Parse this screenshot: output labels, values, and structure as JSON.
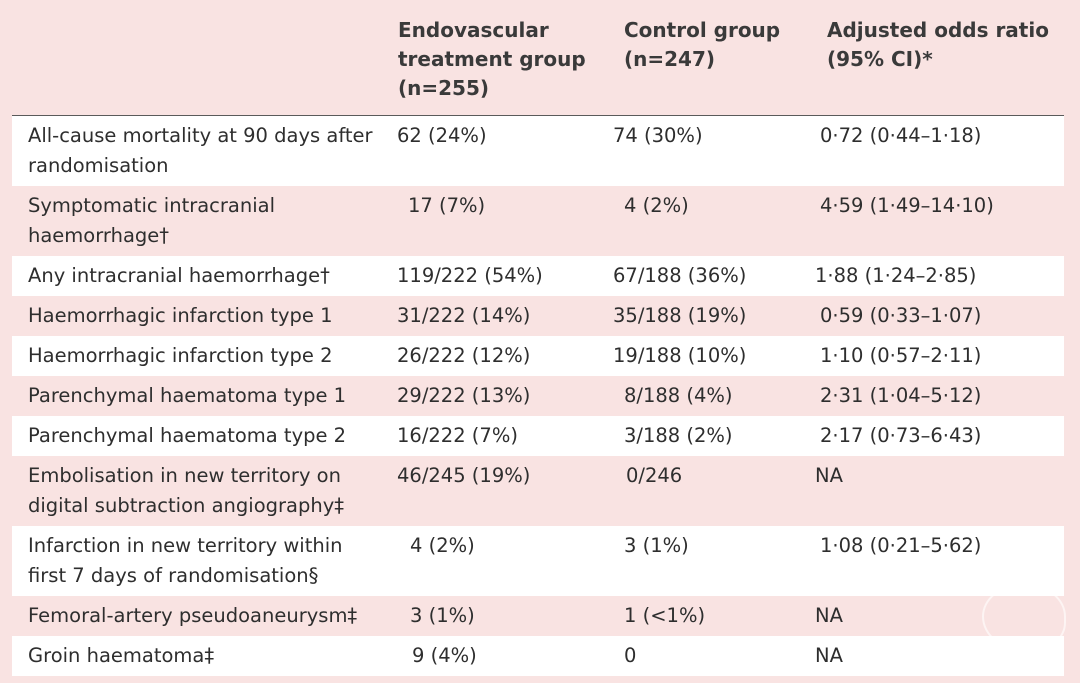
{
  "header": {
    "col1": [
      "Endovascular",
      "treatment group",
      "(n=255)"
    ],
    "col2": [
      "Control group",
      "(n=247)"
    ],
    "col3": [
      "Adjusted odds ratio",
      "(95% CI)*"
    ]
  },
  "rows": [
    {
      "label": [
        "All-cause mortality at 90 days after",
        "randomisation"
      ],
      "ev": "62 (24%)",
      "ctrl": "74 (30%)",
      "or": "0·72 (0·44–1·18)"
    },
    {
      "label": [
        "Symptomatic intracranial",
        "haemorrhage†"
      ],
      "ev": "17 (7%)",
      "ctrl": "4 (2%)",
      "or": "4·59 (1·49–14·10)"
    },
    {
      "label": [
        "Any intracranial haemorrhage†"
      ],
      "ev": "119/222 (54%)",
      "ctrl": "67/188 (36%)",
      "or": "1·88 (1·24–2·85)"
    },
    {
      "label": [
        "Haemorrhagic infarction type 1"
      ],
      "ev": "31/222 (14%)",
      "ctrl": "35/188 (19%)",
      "or": "0·59 (0·33–1·07)"
    },
    {
      "label": [
        "Haemorrhagic infarction type 2"
      ],
      "ev": "26/222 (12%)",
      "ctrl": "19/188 (10%)",
      "or": "1·10 (0·57–2·11)"
    },
    {
      "label": [
        "Parenchymal haematoma type 1"
      ],
      "ev": "29/222 (13%)",
      "ctrl": "8/188 (4%)",
      "or": "2·31 (1·04–5·12)"
    },
    {
      "label": [
        "Parenchymal haematoma type 2"
      ],
      "ev": "16/222 (7%)",
      "ctrl": "3/188 (2%)",
      "or": "2·17 (0·73–6·43)"
    },
    {
      "label": [
        "Embolisation in new territory on",
        "digital subtraction angiography‡"
      ],
      "ev": "46/245 (19%)",
      "ctrl": "0/246",
      "or": "NA"
    },
    {
      "label": [
        "Infarction in new territory within",
        "first 7 days of randomisation§"
      ],
      "ev": "4 (2%)",
      "ctrl": "3 (1%)",
      "or": "1·08 (0·21–5·62)"
    },
    {
      "label": [
        "Femoral-artery pseudoaneurysm‡"
      ],
      "ev": "3 (1%)",
      "ctrl": "1 (<1%)",
      "or": "NA"
    },
    {
      "label": [
        "Groin haematoma‡"
      ],
      "ev": "9 (4%)",
      "ctrl": "0",
      "or": "NA"
    }
  ]
}
